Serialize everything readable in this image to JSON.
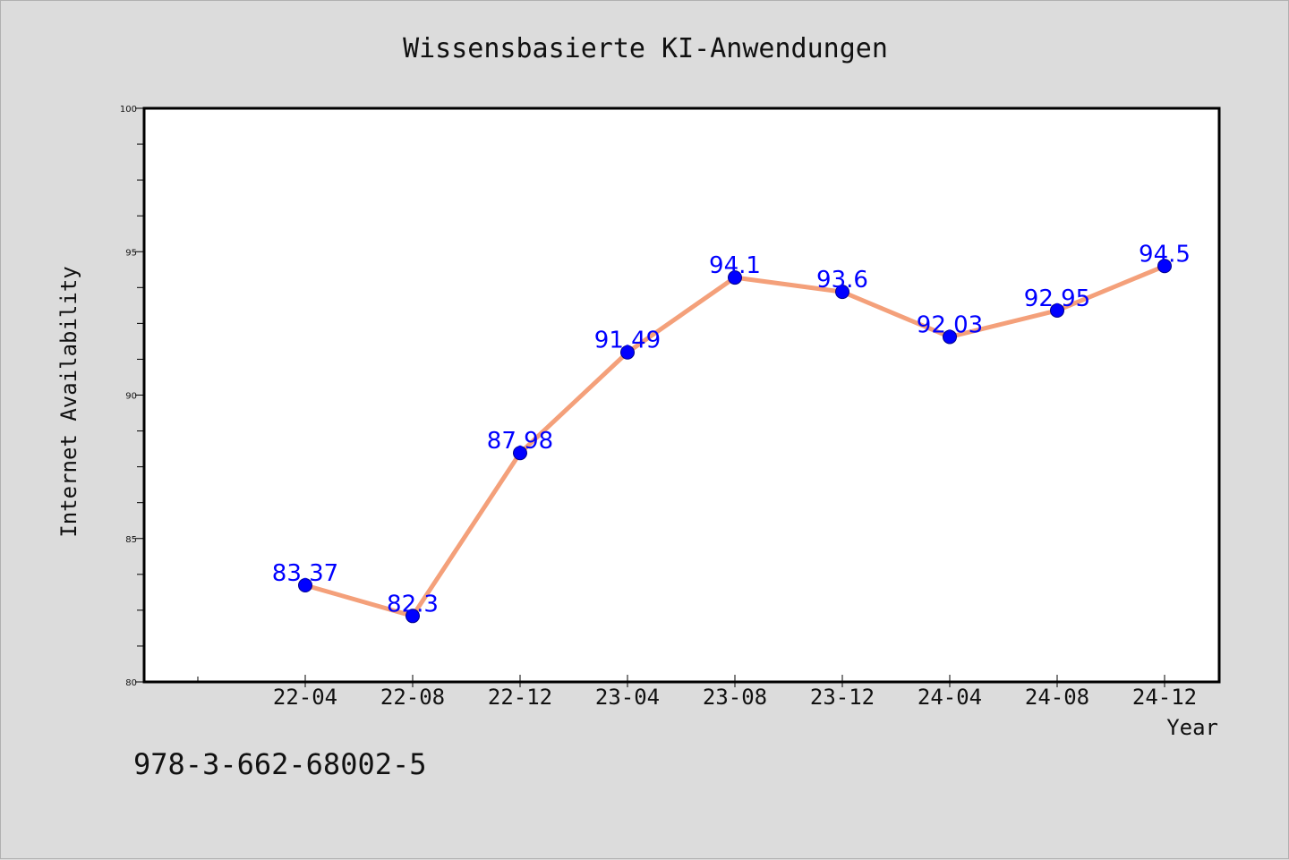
{
  "chart_data": {
    "type": "line",
    "title": "Wissensbasierte KI-Anwendungen",
    "xlabel": "Year",
    "ylabel": "Internet Availability",
    "categories": [
      "22-04",
      "22-08",
      "22-12",
      "23-04",
      "23-08",
      "23-12",
      "24-04",
      "24-08",
      "24-12"
    ],
    "series": [
      {
        "values": [
          83.37,
          82.3,
          87.98,
          91.49,
          94.1,
          93.6,
          92.03,
          92.95,
          94.5
        ],
        "data_labels": [
          "83.37",
          "82.3",
          "87.98",
          "91.49",
          "94.1",
          "93.6",
          "92.03",
          "92.95",
          "94.5"
        ],
        "line_color": "#f4a07a",
        "marker_color": "#0000ff"
      }
    ],
    "ylim": [
      80,
      100
    ],
    "yticks": [
      "80",
      "85",
      "90",
      "95",
      "100"
    ],
    "grid": false,
    "legend": "none",
    "label_color": "#0000ff",
    "plot_background": "#ffffff",
    "figure_background": "#dcdcdc"
  },
  "footer": {
    "isbn": "978-3-662-68002-5"
  }
}
